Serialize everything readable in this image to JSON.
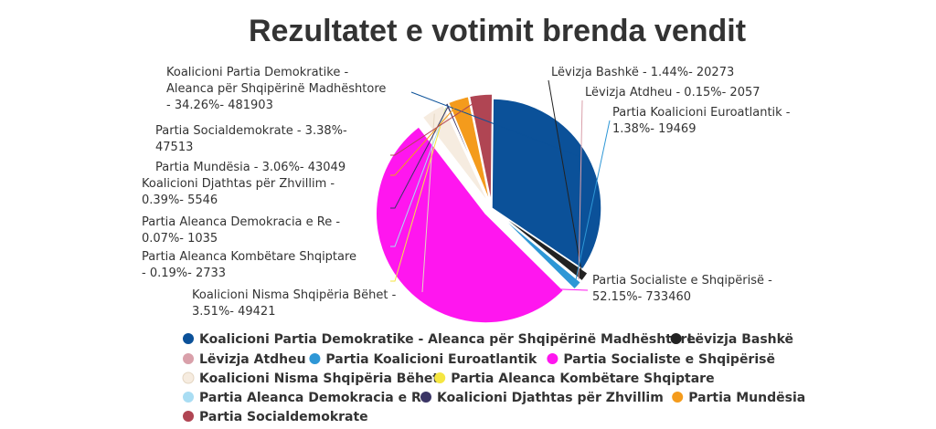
{
  "chart_data": {
    "type": "pie",
    "title": "Rezultatet e votimit brenda vendit",
    "legend_position": "bottom",
    "slices": [
      {
        "name": "Koalicioni Partia Demokratike - Aleanca për Shqipërinë Madhështore",
        "percent": 34.26,
        "votes": 481903,
        "color": "#0b5199",
        "label_lines": [
          "Koalicioni Partia Demokratike -",
          "Aleanca për Shqipërinë Madhështore",
          "- 34.26%- 481903"
        ]
      },
      {
        "name": "Lëvizja Bashkë",
        "percent": 1.44,
        "votes": 20273,
        "color": "#222222",
        "label_lines": [
          "Lëvizja Bashkë - 1.44%- 20273"
        ]
      },
      {
        "name": "Lëvizja Atdheu",
        "percent": 0.15,
        "votes": 2057,
        "color": "#d9a0aa",
        "label_lines": [
          "Lëvizja Atdheu - 0.15%- 2057"
        ]
      },
      {
        "name": "Partia Koalicioni Euroatlantik",
        "percent": 1.38,
        "votes": 19469,
        "color": "#2e97d6",
        "label_lines": [
          "Partia Koalicioni Euroatlantik -",
          "1.38%- 19469"
        ]
      },
      {
        "name": "Partia Socialiste e Shqipërisë",
        "percent": 52.15,
        "votes": 733460,
        "color": "#ff16ef",
        "label_lines": [
          "Partia Socialiste e Shqipërisë -",
          "52.15%- 733460"
        ]
      },
      {
        "name": "Koalicioni Nisma Shqipëria Bëhet",
        "percent": 3.51,
        "votes": 49421,
        "color": "#f6ece0",
        "label_lines": [
          "Koalicioni Nisma Shqipëria Bëhet -",
          "3.51%- 49421"
        ]
      },
      {
        "name": "Partia Aleanca Kombëtare Shqiptare",
        "percent": 0.19,
        "votes": 2733,
        "color": "#f5e642",
        "label_lines": [
          "Partia Aleanca Kombëtare Shqiptare",
          "- 0.19%- 2733"
        ]
      },
      {
        "name": "Partia Aleanca Demokracia e Re",
        "percent": 0.07,
        "votes": 1035,
        "color": "#a9ddf3",
        "label_lines": [
          "Partia Aleanca Demokracia e Re -",
          "0.07%- 1035"
        ]
      },
      {
        "name": "Koalicioni Djathtas për Zhvillim",
        "percent": 0.39,
        "votes": 5546,
        "color": "#3a3565",
        "label_lines": [
          "Koalicioni Djathtas për Zhvillim -",
          "0.39%- 5546"
        ]
      },
      {
        "name": "Partia Mundësia",
        "percent": 3.06,
        "votes": 43049,
        "color": "#f49b1c",
        "label_lines": [
          "Partia Mundësia - 3.06%- 43049"
        ]
      },
      {
        "name": "Partia Socialdemokrate",
        "percent": 3.38,
        "votes": 47513,
        "color": "#b04553",
        "label_lines": [
          "Partia Socialdemokrate - 3.38%-",
          "47513"
        ]
      }
    ]
  }
}
